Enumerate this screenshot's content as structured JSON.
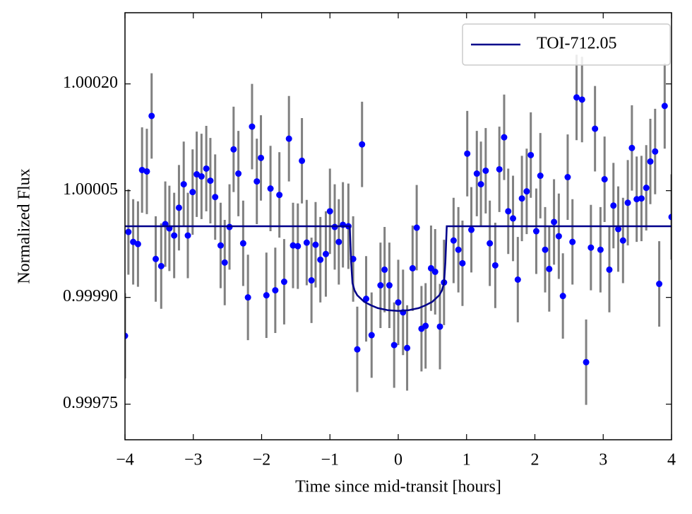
{
  "chart_data": {
    "type": "scatter",
    "xlabel": "Time since mid-transit [hours]",
    "ylabel": "Normalized Flux",
    "xlim": [
      -4,
      4
    ],
    "ylim": [
      0.9997,
      1.0003
    ],
    "xticks": [
      {
        "value": -4,
        "label": "−4"
      },
      {
        "value": -3,
        "label": "−3"
      },
      {
        "value": -2,
        "label": "−2"
      },
      {
        "value": -1,
        "label": "−1"
      },
      0,
      1,
      2,
      3,
      4
    ],
    "yticks": [
      {
        "value": 0.99975,
        "label": "0.99975"
      },
      {
        "value": 0.9999,
        "label": "0.99990"
      },
      {
        "value": 1.00005,
        "label": "1.00005"
      },
      {
        "value": 1.0002,
        "label": "1.00020"
      }
    ],
    "grid": false,
    "legend": "upper right",
    "color": "#0000ff",
    "ecolor": "#808080",
    "yerr": 6e-05,
    "x": [
      -4.0,
      -3.95,
      -3.88,
      -3.81,
      -3.75,
      -3.68,
      -3.61,
      -3.55,
      -3.47,
      -3.41,
      -3.35,
      -3.28,
      -3.21,
      -3.14,
      -3.08,
      -3.01,
      -2.95,
      -2.88,
      -2.81,
      -2.75,
      -2.68,
      -2.6,
      -2.54,
      -2.47,
      -2.41,
      -2.34,
      -2.27,
      -2.2,
      -2.14,
      -2.07,
      -2.01,
      -1.93,
      -1.87,
      -1.8,
      -1.74,
      -1.67,
      -1.6,
      -1.54,
      -1.47,
      -1.41,
      -1.34,
      -1.27,
      -1.21,
      -1.14,
      -1.06,
      -1.0,
      -0.93,
      -0.87,
      -0.81,
      -0.73,
      -0.66,
      -0.6,
      -0.53,
      -0.47,
      -0.39,
      -0.26,
      -0.2,
      -0.13,
      -0.06,
      0.0,
      0.07,
      0.13,
      0.21,
      0.27,
      0.34,
      0.4,
      0.48,
      0.54,
      0.61,
      0.67,
      0.81,
      0.88,
      0.94,
      1.01,
      1.07,
      1.15,
      1.21,
      1.28,
      1.34,
      1.42,
      1.48,
      1.55,
      1.61,
      1.68,
      1.75,
      1.81,
      1.88,
      1.94,
      2.02,
      2.08,
      2.15,
      2.21,
      2.28,
      2.35,
      2.41,
      2.48,
      2.55,
      2.61,
      2.69,
      2.75,
      2.82,
      2.88,
      2.96,
      3.02,
      3.09,
      3.15,
      3.22,
      3.29,
      3.36,
      3.42,
      3.49,
      3.56,
      3.63,
      3.69,
      3.76,
      3.82,
      3.9,
      4.0
    ],
    "values": [
      0.999846,
      0.999992,
      0.999978,
      0.999975,
      1.000079,
      1.000077,
      1.000155,
      0.999954,
      0.999944,
      1.000003,
      0.999997,
      0.999987,
      1.000026,
      1.000059,
      0.999987,
      1.000048,
      1.000073,
      1.00007,
      1.000081,
      1.000064,
      1.000041,
      0.999973,
      0.999949,
      0.999999,
      1.000108,
      1.000074,
      0.999976,
      0.9999,
      1.00014,
      1.000063,
      1.000096,
      0.999903,
      1.000053,
      0.99991,
      1.000044,
      0.999922,
      1.000123,
      0.999973,
      0.999972,
      1.000092,
      0.999977,
      0.999924,
      0.999974,
      0.999953,
      0.999961,
      1.000021,
      0.999999,
      0.999978,
      1.000002,
      1.0,
      0.999954,
      0.999827,
      1.000115,
      0.999898,
      0.999847,
      0.999917,
      0.999939,
      0.999917,
      0.999833,
      0.999893,
      0.999879,
      0.999829,
      0.999941,
      0.999998,
      0.999856,
      0.99986,
      0.999941,
      0.999936,
      0.999859,
      0.999921,
      0.99998,
      0.999967,
      0.999948,
      1.000102,
      0.999995,
      1.000074,
      1.000059,
      1.000078,
      0.999976,
      0.999945,
      1.00008,
      1.000125,
      1.000021,
      1.000011,
      0.999925,
      1.000039,
      1.000049,
      1.0001,
      0.999993,
      1.000071,
      0.999967,
      0.99994,
      1.000006,
      0.999986,
      0.999902,
      1.000069,
      0.999978,
      1.000181,
      1.000178,
      0.999809,
      0.99997,
      1.000137,
      0.999967,
      1.000066,
      0.999939,
      1.000029,
      0.999996,
      0.99998,
      1.000033,
      1.00011,
      1.000038,
      1.000039,
      1.000054,
      1.000091,
      1.000105,
      0.999919,
      1.000169,
      1.000013
    ],
    "series": [
      {
        "name": "TOI-712.05",
        "color": "#00008b",
        "x": [
          -4,
          -0.71,
          -0.69,
          -0.67,
          -0.64,
          -0.6,
          -0.5,
          -0.4,
          -0.3,
          -0.15,
          0,
          0.15,
          0.3,
          0.4,
          0.5,
          0.6,
          0.64,
          0.67,
          0.69,
          0.71,
          4
        ],
        "values": [
          1.0,
          1.0,
          0.99995,
          0.99992,
          0.99991,
          0.999903,
          0.999894,
          0.999889,
          0.999885,
          0.999882,
          0.999881,
          0.999882,
          0.999885,
          0.999889,
          0.999894,
          0.999903,
          0.99991,
          0.99992,
          0.99995,
          1.0,
          1.0
        ]
      }
    ]
  }
}
